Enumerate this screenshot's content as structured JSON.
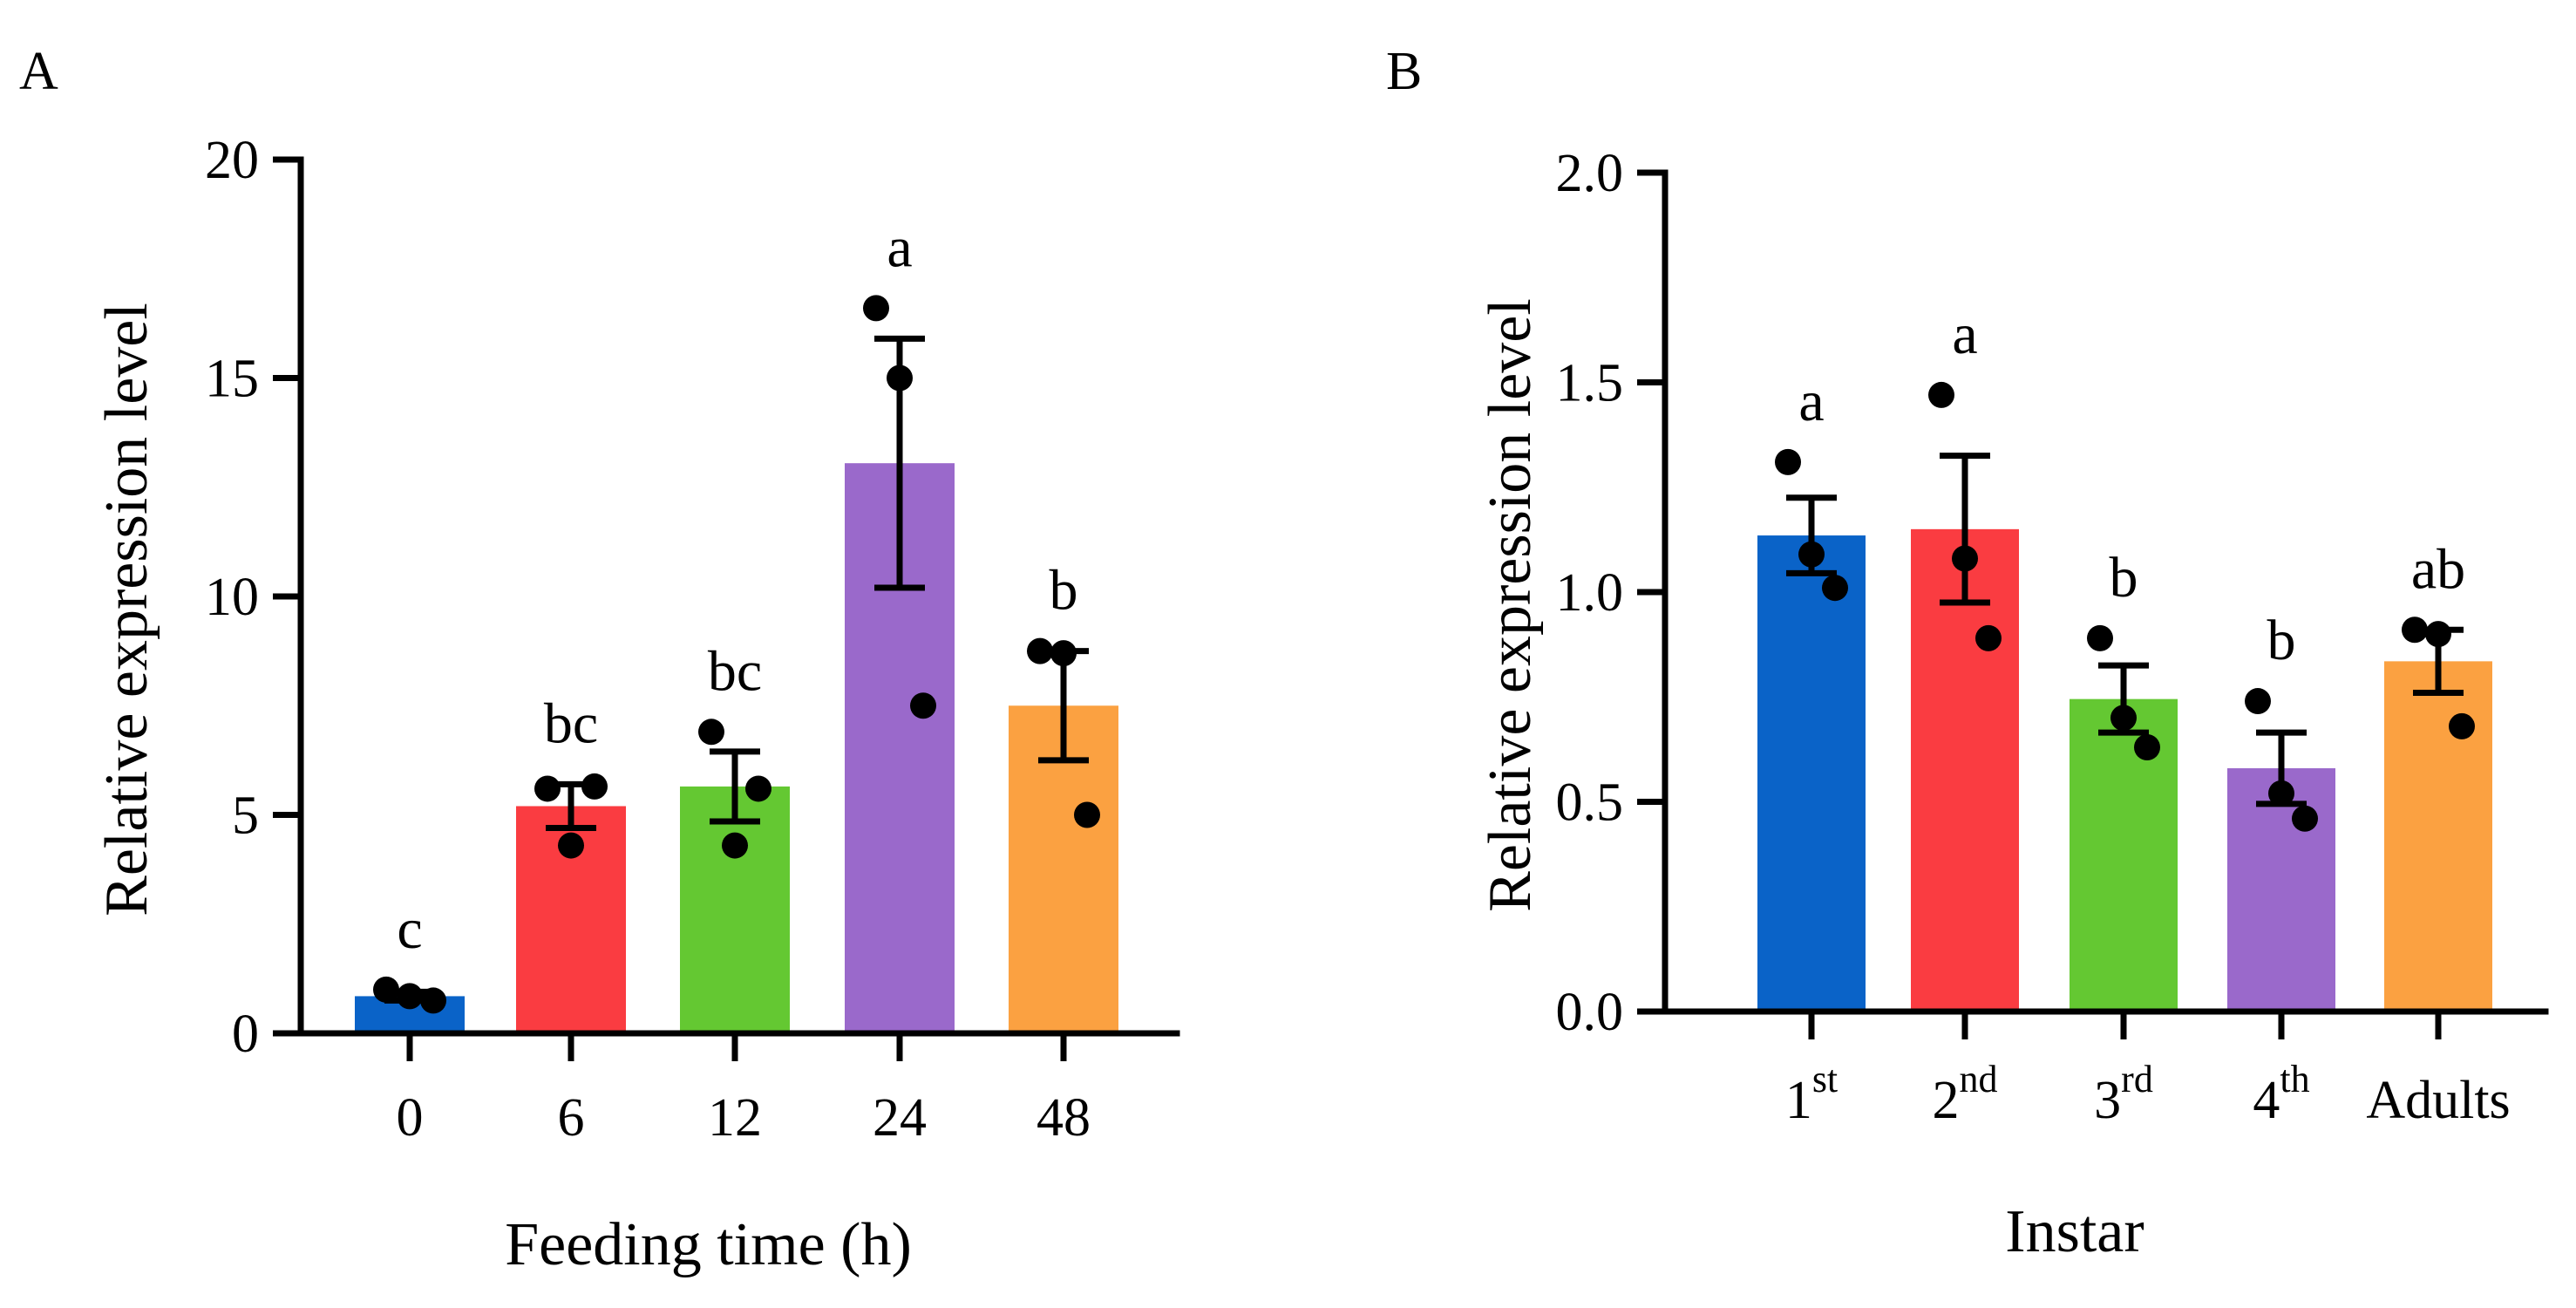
{
  "chart_data": [
    {
      "panel": "A",
      "type": "bar",
      "xlabel": "Feeding time (h)",
      "ylabel": "Relative expression level",
      "ylim": [
        0,
        20
      ],
      "yticks": [
        "0",
        "5",
        "10",
        "15",
        "20"
      ],
      "ytick_values": [
        0,
        5,
        10,
        15,
        20
      ],
      "categories": [
        {
          "label": "0",
          "sup": ""
        },
        {
          "label": "6",
          "sup": ""
        },
        {
          "label": "12",
          "sup": ""
        },
        {
          "label": "24",
          "sup": ""
        },
        {
          "label": "48",
          "sup": ""
        }
      ],
      "values": [
        0.85,
        5.2,
        5.65,
        13.05,
        7.5
      ],
      "errors": [
        0.1,
        0.5,
        0.8,
        2.85,
        1.25
      ],
      "points": [
        [
          1.0,
          0.85,
          0.75
        ],
        [
          5.6,
          4.3,
          5.65
        ],
        [
          6.9,
          4.3,
          5.6
        ],
        [
          16.6,
          15.0,
          7.5
        ],
        [
          8.75,
          8.7,
          5.0
        ]
      ],
      "significance": [
        "c",
        "bc",
        "bc",
        "a",
        "b"
      ],
      "colors": [
        "#0a63c8",
        "#fa3c41",
        "#64c832",
        "#9a69cb",
        "#fba141"
      ],
      "grid": false,
      "legend": "none"
    },
    {
      "panel": "B",
      "type": "bar",
      "xlabel": "Instar",
      "ylabel": "Relative expression level",
      "ylim": [
        0,
        2.0
      ],
      "yticks": [
        "0.0",
        "0.5",
        "1.0",
        "1.5",
        "2.0"
      ],
      "ytick_values": [
        0,
        0.5,
        1.0,
        1.5,
        2.0
      ],
      "categories": [
        {
          "label": "1",
          "sup": "st"
        },
        {
          "label": "2",
          "sup": "nd"
        },
        {
          "label": "3",
          "sup": "rd"
        },
        {
          "label": "4",
          "sup": "th"
        },
        {
          "label": "Adults",
          "sup": ""
        }
      ],
      "values": [
        1.135,
        1.15,
        0.745,
        0.58,
        0.835
      ],
      "errors": [
        0.09,
        0.175,
        0.08,
        0.085,
        0.075
      ],
      "points": [
        [
          1.31,
          1.09,
          1.01
        ],
        [
          1.47,
          1.08,
          0.89
        ],
        [
          0.89,
          0.7,
          0.63
        ],
        [
          0.74,
          0.52,
          0.46
        ],
        [
          0.91,
          0.9,
          0.68
        ]
      ],
      "significance": [
        "a",
        "a",
        "b",
        "b",
        "ab"
      ],
      "colors": [
        "#0a63c8",
        "#fa3c41",
        "#64c832",
        "#9a69cb",
        "#fba141"
      ],
      "grid": false,
      "legend": "none"
    }
  ]
}
